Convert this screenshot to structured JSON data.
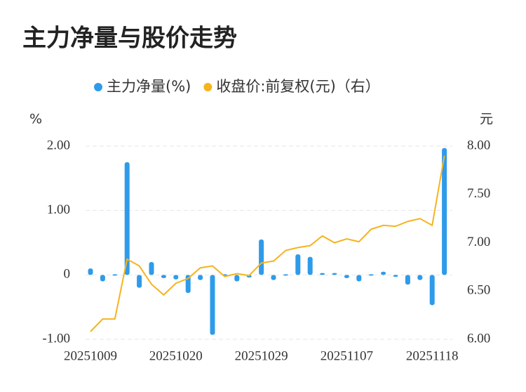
{
  "chart_data": {
    "type": "bar-line",
    "title": "主力净量与股价走势",
    "y_unit": "%",
    "y2_unit": "元",
    "categories": [
      "20251009",
      null,
      null,
      null,
      null,
      null,
      null,
      "20251020",
      null,
      null,
      null,
      null,
      null,
      null,
      "20251029",
      null,
      null,
      null,
      null,
      null,
      null,
      "20251107",
      null,
      null,
      null,
      null,
      null,
      null,
      "20251118",
      null
    ],
    "series": [
      {
        "name": "主力净量(%)",
        "color": "#2e9bea",
        "type": "bar",
        "values": [
          0.1,
          -0.1,
          -0.01,
          1.75,
          -0.2,
          0.2,
          -0.05,
          -0.07,
          -0.28,
          -0.08,
          -0.93,
          -0.01,
          -0.1,
          -0.04,
          0.55,
          -0.08,
          -0.01,
          0.32,
          0.28,
          0.03,
          0.03,
          -0.05,
          -0.1,
          0,
          0.05,
          -0.03,
          -0.15,
          -0.08,
          -0.47,
          1.97
        ]
      },
      {
        "name": "收盘价:前复权(元)（右）",
        "color": "#f5b41e",
        "type": "line",
        "axis": "y2",
        "values": [
          6.08,
          6.21,
          6.21,
          6.83,
          6.76,
          6.57,
          6.46,
          6.58,
          6.63,
          6.74,
          6.76,
          6.65,
          6.68,
          6.66,
          6.79,
          6.81,
          6.92,
          6.95,
          6.97,
          7.07,
          7.0,
          7.04,
          7.01,
          7.14,
          7.18,
          7.17,
          7.22,
          7.25,
          7.18,
          7.9
        ]
      }
    ],
    "ylim": [
      -1,
      2
    ],
    "yticks": [
      {
        "value": 2,
        "label": "2.00"
      },
      {
        "value": 1,
        "label": "1.00"
      },
      0,
      {
        "value": -1,
        "label": "-1.00"
      }
    ],
    "y2lim": [
      6,
      8
    ],
    "y2ticks": [
      {
        "value": 8,
        "label": "8.00"
      },
      {
        "value": 7.5,
        "label": "7.50"
      },
      {
        "value": 7,
        "label": "7.00"
      },
      {
        "value": 6.5,
        "label": "6.50"
      },
      {
        "value": 6,
        "label": "6.00"
      }
    ],
    "grid": true,
    "legend": "top"
  }
}
